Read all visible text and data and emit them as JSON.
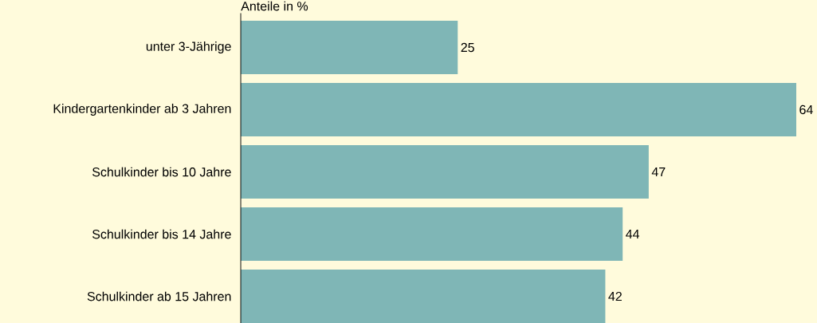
{
  "chart_data": {
    "type": "bar",
    "orientation": "horizontal",
    "xlabel": "Anteile in %",
    "categories": [
      "unter 3-Jährige",
      "Kindergartenkinder ab 3 Jahren",
      "Schulkinder bis 10 Jahre",
      "Schulkinder bis 14 Jahre",
      "Schulkinder ab 15 Jahren"
    ],
    "values": [
      25,
      64,
      47,
      44,
      42
    ],
    "color": "#7fb6b6",
    "data_labels": true
  }
}
